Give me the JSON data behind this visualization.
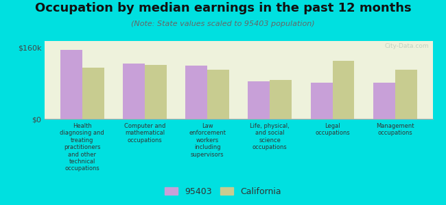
{
  "title": "Occupation by median earnings in the past 12 months",
  "subtitle": "(Note: State values scaled to 95403 population)",
  "background_color": "#00e0e0",
  "plot_bg_color": "#eef2dc",
  "categories": [
    "Health\ndiagnosing and\ntreating\npractitioners\nand other\ntechnical\noccupations",
    "Computer and\nmathematical\noccupations",
    "Law\nenforcement\nworkers\nincluding\nsupervisors",
    "Life, physical,\nand social\nscience\noccupations",
    "Legal\noccupations",
    "Management\noccupations"
  ],
  "values_95403": [
    155000,
    125000,
    120000,
    85000,
    82000,
    82000
  ],
  "values_california": [
    115000,
    122000,
    110000,
    87000,
    130000,
    110000
  ],
  "color_95403": "#c8a0d8",
  "color_california": "#c8cc90",
  "ylim": [
    0,
    175000
  ],
  "yticks": [
    0,
    160000
  ],
  "ytick_labels": [
    "$0",
    "$160k"
  ],
  "legend_label_95403": "95403",
  "legend_label_california": "California",
  "bar_width": 0.35,
  "watermark": "City-Data.com",
  "title_fontsize": 13,
  "subtitle_fontsize": 8
}
